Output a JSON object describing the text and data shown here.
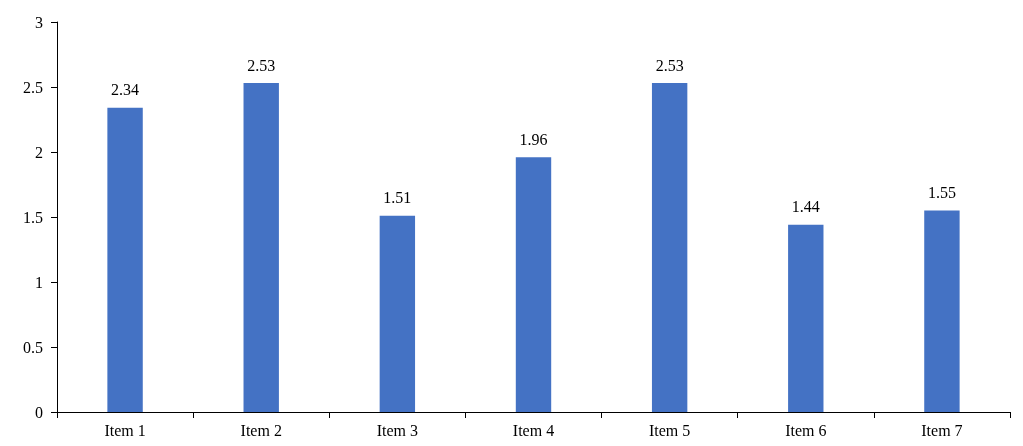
{
  "chart_data": {
    "type": "bar",
    "categories": [
      "Item 1",
      "Item 2",
      "Item 3",
      "Item 4",
      "Item 5",
      "Item 6",
      "Item 7"
    ],
    "values": [
      2.34,
      2.53,
      1.51,
      1.96,
      2.53,
      1.44,
      1.55
    ],
    "color": "#4472c4",
    "ylim": [
      0,
      3
    ],
    "yticks": [
      0,
      0.5,
      1,
      1.5,
      2,
      2.5,
      3
    ],
    "data_labels": true,
    "grid": false
  }
}
